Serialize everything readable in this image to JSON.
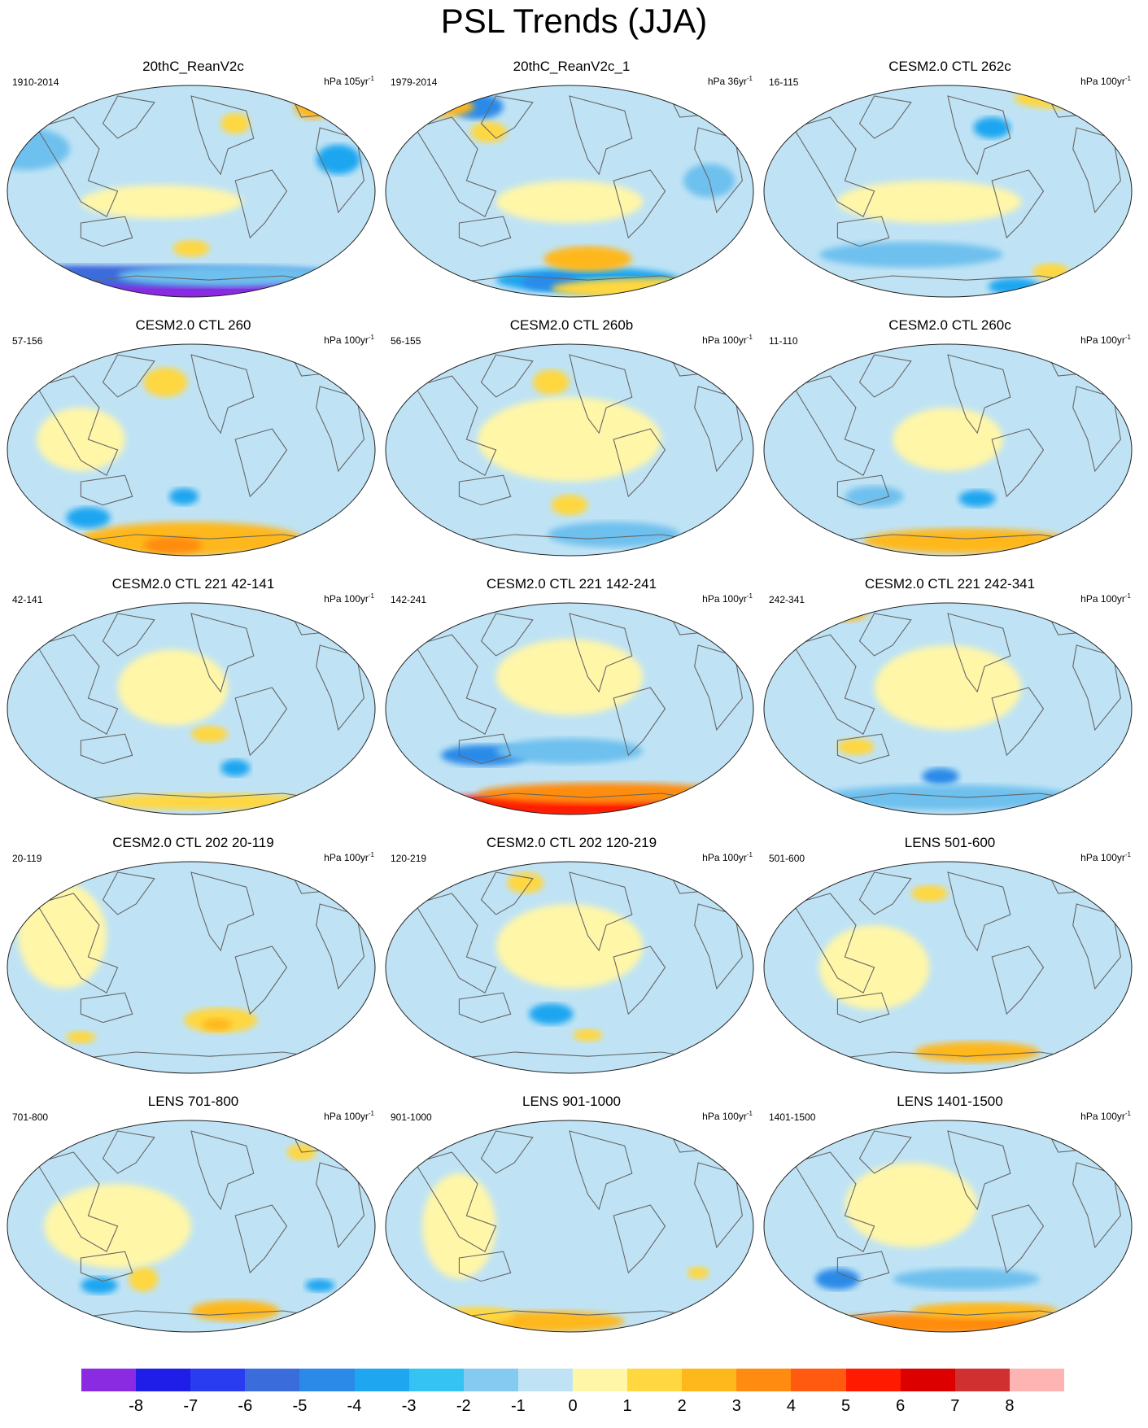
{
  "title": "PSL Trends (JJA)",
  "units_base": "hPa",
  "units_exp": "-1",
  "panels": [
    {
      "title": "20thC_ReanV2c",
      "period": "1910-2014",
      "units": "105yr",
      "anomalies": [
        [
          -8,
          0.0,
          0.96,
          0.95,
          0.09
        ],
        [
          -5,
          0.0,
          0.9,
          0.98,
          0.05
        ],
        [
          -2,
          0.05,
          0.3,
          0.12,
          0.1
        ],
        [
          -3,
          0.9,
          0.35,
          0.06,
          0.07
        ],
        [
          2,
          0.62,
          0.18,
          0.04,
          0.05
        ],
        [
          3,
          0.83,
          0.1,
          0.05,
          0.06
        ],
        [
          1,
          0.42,
          0.55,
          0.22,
          0.08
        ],
        [
          2,
          0.5,
          0.77,
          0.05,
          0.04
        ],
        [
          -2,
          0.6,
          0.9,
          0.3,
          0.05
        ]
      ]
    },
    {
      "title": "20thC_ReanV2c_1",
      "period": "1979-2014",
      "units": "36yr",
      "anomalies": [
        [
          -4,
          0.25,
          0.1,
          0.07,
          0.06
        ],
        [
          3,
          0.14,
          0.1,
          0.1,
          0.05
        ],
        [
          2,
          0.28,
          0.22,
          0.05,
          0.05
        ],
        [
          -3,
          0.55,
          0.92,
          0.25,
          0.06
        ],
        [
          -4,
          0.45,
          0.93,
          0.08,
          0.04
        ],
        [
          3,
          0.55,
          0.82,
          0.12,
          0.06
        ],
        [
          2,
          0.75,
          0.96,
          0.3,
          0.05
        ],
        [
          -2,
          0.88,
          0.45,
          0.07,
          0.08
        ],
        [
          1,
          0.5,
          0.55,
          0.2,
          0.1
        ]
      ]
    },
    {
      "title": "CESM2.0 CTL 262c",
      "period": "16-115",
      "units": "100yr",
      "anomalies": [
        [
          -2,
          0.4,
          0.8,
          0.25,
          0.06
        ],
        [
          -3,
          0.62,
          0.2,
          0.05,
          0.05
        ],
        [
          2,
          0.78,
          0.88,
          0.05,
          0.04
        ],
        [
          -3,
          0.68,
          0.95,
          0.07,
          0.04
        ],
        [
          2,
          0.8,
          0.06,
          0.12,
          0.05
        ],
        [
          1,
          0.45,
          0.55,
          0.25,
          0.1
        ]
      ]
    },
    {
      "title": "CESM2.0 CTL 260",
      "period": "57-156",
      "units": "100yr",
      "anomalies": [
        [
          3,
          0.5,
          0.92,
          0.3,
          0.08
        ],
        [
          4,
          0.45,
          0.95,
          0.08,
          0.04
        ],
        [
          -3,
          0.22,
          0.82,
          0.06,
          0.05
        ],
        [
          -3,
          0.48,
          0.72,
          0.04,
          0.04
        ],
        [
          2,
          0.43,
          0.18,
          0.06,
          0.07
        ],
        [
          1,
          0.2,
          0.45,
          0.12,
          0.15
        ]
      ]
    },
    {
      "title": "CESM2.0 CTL 260b",
      "period": "56-155",
      "units": "100yr",
      "anomalies": [
        [
          2,
          0.5,
          0.76,
          0.05,
          0.05
        ],
        [
          -2,
          0.62,
          0.9,
          0.18,
          0.06
        ],
        [
          2,
          0.45,
          0.18,
          0.05,
          0.06
        ],
        [
          1,
          0.5,
          0.45,
          0.25,
          0.2
        ]
      ]
    },
    {
      "title": "CESM2.0 CTL 260c",
      "period": "11-110",
      "units": "100yr",
      "anomalies": [
        [
          3,
          0.55,
          0.93,
          0.28,
          0.06
        ],
        [
          -3,
          0.58,
          0.73,
          0.05,
          0.04
        ],
        [
          -2,
          0.3,
          0.72,
          0.08,
          0.05
        ],
        [
          1,
          0.5,
          0.45,
          0.15,
          0.15
        ]
      ]
    },
    {
      "title": "CESM2.0 CTL 221 42-141",
      "period": "42-141",
      "units": "100yr",
      "anomalies": [
        [
          2,
          0.55,
          0.94,
          0.3,
          0.04
        ],
        [
          -3,
          0.62,
          0.78,
          0.04,
          0.04
        ],
        [
          2,
          0.55,
          0.62,
          0.05,
          0.04
        ],
        [
          1,
          0.45,
          0.4,
          0.15,
          0.18
        ]
      ]
    },
    {
      "title": "CESM2.0 CTL 221 142-241",
      "period": "142-241",
      "units": "100yr",
      "anomalies": [
        [
          6,
          0.45,
          0.96,
          0.38,
          0.06
        ],
        [
          4,
          0.6,
          0.9,
          0.35,
          0.05
        ],
        [
          -4,
          0.27,
          0.72,
          0.12,
          0.05
        ],
        [
          -2,
          0.5,
          0.7,
          0.2,
          0.06
        ],
        [
          1,
          0.5,
          0.35,
          0.2,
          0.18
        ]
      ]
    },
    {
      "title": "CESM2.0 CTL 221 242-341",
      "period": "242-341",
      "units": "100yr",
      "anomalies": [
        [
          -4,
          0.48,
          0.82,
          0.05,
          0.04
        ],
        [
          -2,
          0.5,
          0.92,
          0.35,
          0.06
        ],
        [
          3,
          0.2,
          0.05,
          0.08,
          0.04
        ],
        [
          2,
          0.25,
          0.68,
          0.05,
          0.04
        ],
        [
          1,
          0.5,
          0.4,
          0.2,
          0.2
        ]
      ]
    },
    {
      "title": "CESM2.0 CTL 202 20-119",
      "period": "20-119",
      "units": "100yr",
      "anomalies": [
        [
          2,
          0.58,
          0.75,
          0.1,
          0.06
        ],
        [
          3,
          0.57,
          0.77,
          0.04,
          0.03
        ],
        [
          2,
          0.2,
          0.83,
          0.04,
          0.03
        ],
        [
          1,
          0.15,
          0.35,
          0.12,
          0.25
        ]
      ]
    },
    {
      "title": "CESM2.0 CTL 202 120-219",
      "period": "120-219",
      "units": "100yr",
      "anomalies": [
        [
          -3,
          0.45,
          0.72,
          0.06,
          0.05
        ],
        [
          2,
          0.55,
          0.82,
          0.04,
          0.03
        ],
        [
          2,
          0.38,
          0.1,
          0.05,
          0.05
        ],
        [
          1,
          0.5,
          0.4,
          0.2,
          0.2
        ]
      ]
    },
    {
      "title": "LENS 501-600",
      "period": "501-600",
      "units": "100yr",
      "anomalies": [
        [
          3,
          0.58,
          0.9,
          0.17,
          0.05
        ],
        [
          -1,
          0.55,
          0.7,
          0.2,
          0.06
        ],
        [
          2,
          0.45,
          0.15,
          0.05,
          0.04
        ],
        [
          1,
          0.3,
          0.5,
          0.15,
          0.2
        ]
      ]
    },
    {
      "title": "LENS 701-800",
      "period": "701-800",
      "units": "100yr",
      "anomalies": [
        [
          3,
          0.62,
          0.9,
          0.12,
          0.05
        ],
        [
          -3,
          0.25,
          0.78,
          0.05,
          0.04
        ],
        [
          -3,
          0.85,
          0.78,
          0.04,
          0.03
        ],
        [
          2,
          0.37,
          0.75,
          0.04,
          0.06
        ],
        [
          2,
          0.8,
          0.15,
          0.04,
          0.04
        ],
        [
          1,
          0.3,
          0.5,
          0.2,
          0.2
        ]
      ]
    },
    {
      "title": "LENS 901-1000",
      "period": "901-1000",
      "units": "100yr",
      "anomalies": [
        [
          3,
          0.45,
          0.95,
          0.2,
          0.05
        ],
        [
          2,
          0.25,
          0.92,
          0.1,
          0.04
        ],
        [
          2,
          0.85,
          0.72,
          0.03,
          0.03
        ],
        [
          1,
          0.2,
          0.5,
          0.1,
          0.25
        ]
      ]
    },
    {
      "title": "LENS 1401-1500",
      "period": "1401-1500",
      "units": "100yr",
      "anomalies": [
        [
          4,
          0.5,
          0.96,
          0.35,
          0.05
        ],
        [
          3,
          0.6,
          0.9,
          0.2,
          0.04
        ],
        [
          -4,
          0.2,
          0.75,
          0.06,
          0.05
        ],
        [
          -2,
          0.55,
          0.75,
          0.2,
          0.05
        ],
        [
          1,
          0.4,
          0.4,
          0.18,
          0.2
        ]
      ]
    }
  ],
  "colorbar": {
    "labels": [
      "-8",
      "-7",
      "-6",
      "-5",
      "-4",
      "-3",
      "-2",
      "-1",
      "0",
      "1",
      "2",
      "3",
      "4",
      "5",
      "6",
      "7",
      "8"
    ],
    "colors": [
      "#8a2be2",
      "#1e1ee8",
      "#2a3cf0",
      "#3a6cdc",
      "#2b8ae8",
      "#1ea6f0",
      "#34c3f2",
      "#85caf0",
      "#bfe3f5",
      "#fff6a8",
      "#ffd740",
      "#ffb81c",
      "#ff8c10",
      "#ff5a10",
      "#ff1a00",
      "#dd0000",
      "#d03030",
      "#ffb4b4"
    ]
  },
  "palette": {
    "-8": "#8a2be2",
    "-7": "#1e1ee8",
    "-6": "#2a3cf0",
    "-5": "#3a6cdc",
    "-4": "#2b8ae8",
    "-3": "#1ea6f0",
    "-2": "#6ec0ee",
    "-1": "#bfe3f5",
    "0": "#bfe3f5",
    "1": "#fff6a8",
    "2": "#ffd740",
    "3": "#ffb81c",
    "4": "#ff8c10",
    "5": "#ff5a10",
    "6": "#ff1a00",
    "7": "#dd0000",
    "8": "#ffb4b4"
  }
}
